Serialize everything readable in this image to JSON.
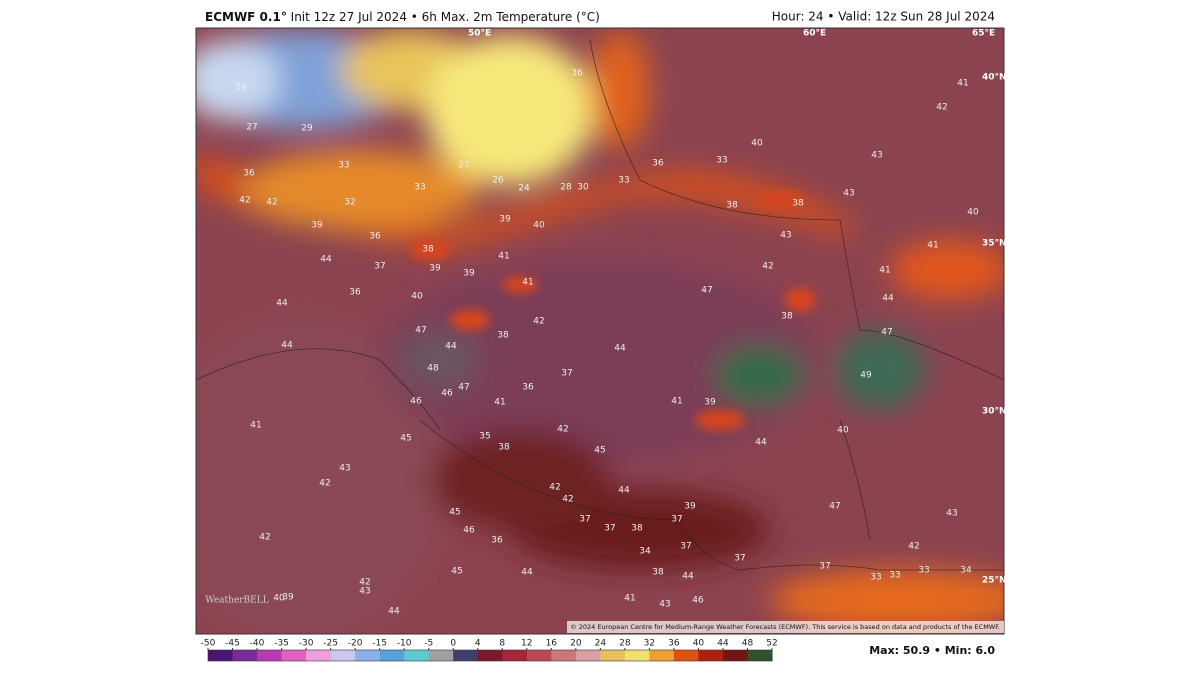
{
  "header": {
    "left_bold": "ECMWF 0.1°",
    "left": "Init 12z 27 Jul 2024 • 6h Max. 2m Temperature (°C)",
    "right": "Hour: 24 • Valid: 12z Sun 28 Jul 2024"
  },
  "map": {
    "geo_labels": [
      "50°E",
      "60°E",
      "65°E",
      "40°N",
      "35°N",
      "30°N",
      "25°N"
    ],
    "values": [
      26,
      27,
      29,
      33,
      36,
      42,
      42,
      32,
      33,
      27,
      26,
      24,
      28,
      30,
      33,
      36,
      36,
      33,
      40,
      43,
      43,
      38,
      43,
      38,
      40,
      41,
      41,
      44,
      42,
      47,
      38,
      47,
      49,
      42,
      41,
      39,
      36,
      38,
      39,
      40,
      41,
      39,
      39,
      41,
      37,
      44,
      36,
      40,
      44,
      44,
      47,
      44,
      38,
      42,
      44,
      48,
      47,
      46,
      46,
      41,
      36,
      37,
      41,
      39,
      44,
      40,
      42,
      45,
      35,
      38,
      45,
      41,
      43,
      42,
      42,
      42,
      44,
      39,
      45,
      46,
      36,
      37,
      37,
      38,
      37,
      34,
      37,
      37,
      38,
      44,
      46,
      43,
      41,
      44,
      45,
      42,
      43,
      40,
      39,
      44,
      42,
      47,
      43,
      42,
      33,
      33,
      33,
      34,
      37
    ],
    "copyright": "© 2024 European Centre for Medium-Range Weather Forecasts (ECMWF). This service is based on data and products of the ECMWF.",
    "logo": "WeatherBELL"
  },
  "colorbar": {
    "ticks": [
      -50,
      -45,
      -40,
      -35,
      -30,
      -25,
      -20,
      -15,
      -10,
      -5,
      0,
      4,
      8,
      12,
      16,
      20,
      24,
      28,
      32,
      36,
      40,
      44,
      48,
      52
    ]
  },
  "footer": {
    "stats": "Max: 50.9 • Min: 6.0"
  }
}
